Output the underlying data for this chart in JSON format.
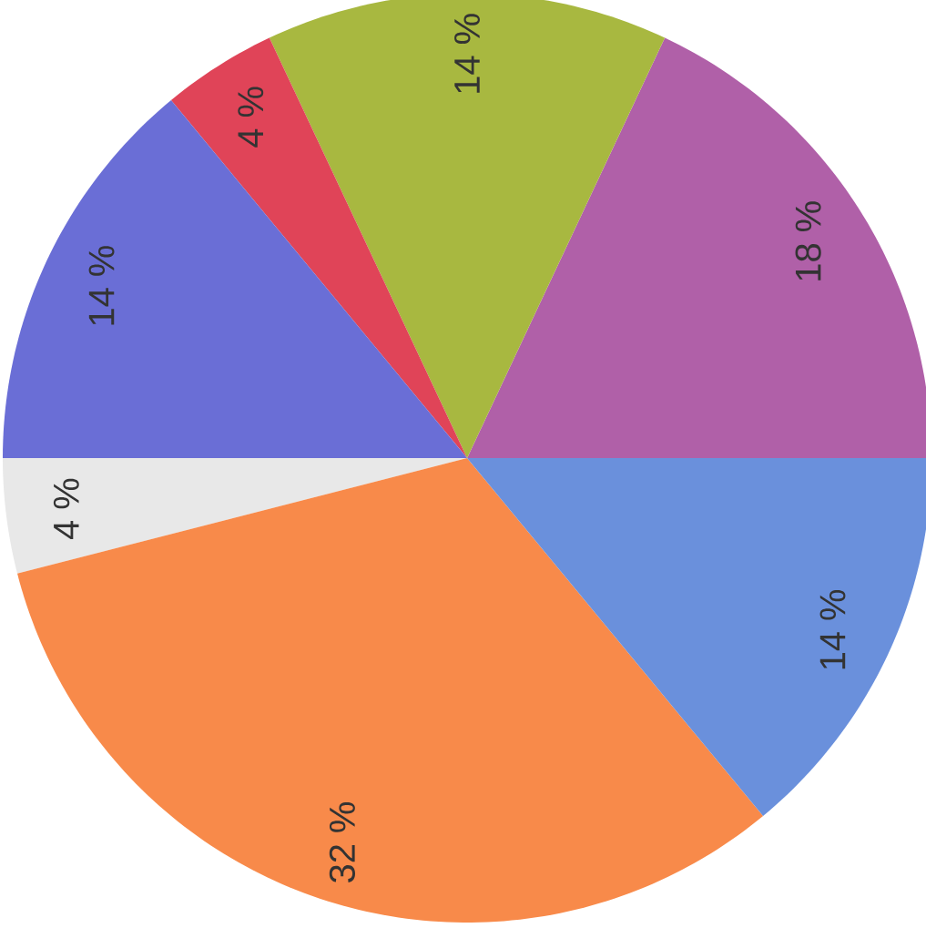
{
  "chart_data": {
    "type": "pie",
    "categories": [
      null,
      null,
      null,
      null,
      null,
      null,
      null
    ],
    "values": [
      18,
      14,
      4,
      14,
      4,
      32,
      14
    ],
    "colors": [
      "#b060a8",
      "#a8b840",
      "#e04458",
      "#6a6ed6",
      "#e8e8e8",
      "#f88a4a",
      "#6a90dc"
    ],
    "value_labels": [
      "18 %",
      "14 %",
      "4 %",
      "14 %",
      "4 %",
      "32 %",
      "14 %"
    ]
  }
}
